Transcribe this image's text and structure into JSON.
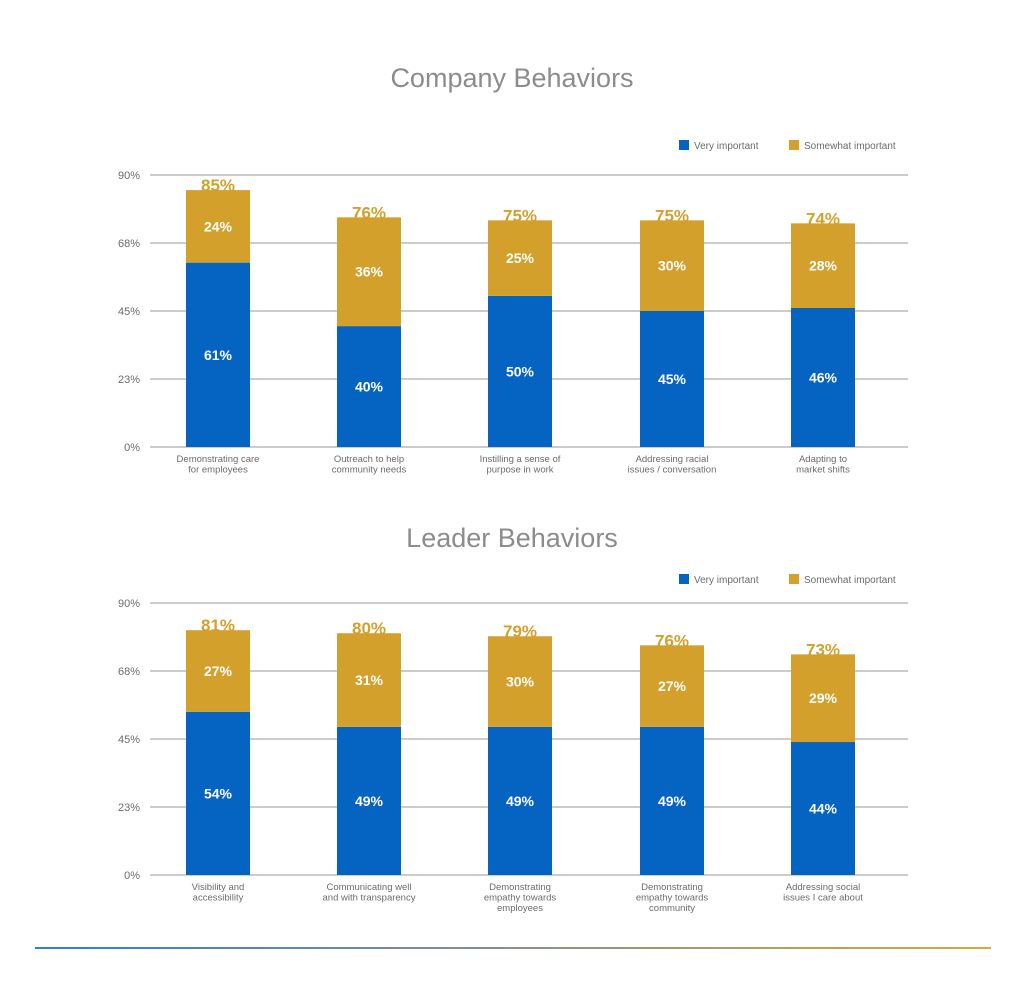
{
  "colors": {
    "very": "#0563c1",
    "somewhat": "#d4a02c",
    "grid": "#9a9a9a",
    "title": "#8c8c8c",
    "text": "#6b6b6b",
    "divider_start": "#2f7fd4",
    "divider_end": "#d9a93a"
  },
  "chart_data": [
    {
      "type": "bar",
      "stacked": true,
      "title": "Company Behaviors",
      "ylim": [
        0,
        90
      ],
      "yticks": [
        "0%",
        "23%",
        "45%",
        "68%",
        "90%"
      ],
      "ytick_values": [
        0,
        22.5,
        45,
        67.5,
        90
      ],
      "legend_position": "top-right",
      "categories": [
        [
          "Demonstrating care",
          "for employees"
        ],
        [
          "Outreach to help",
          "community needs"
        ],
        [
          "Instilling a sense of",
          "purpose in work"
        ],
        [
          "Addressing racial",
          "issues / conversation"
        ],
        [
          "Adapting to",
          "market shifts"
        ]
      ],
      "series": [
        {
          "name": "Very important",
          "values": [
            61,
            40,
            50,
            45,
            46
          ]
        },
        {
          "name": "Somewhat important",
          "values": [
            24,
            36,
            25,
            30,
            28
          ]
        }
      ],
      "totals": [
        85,
        76,
        75,
        75,
        74
      ]
    },
    {
      "type": "bar",
      "stacked": true,
      "title": "Leader Behaviors",
      "ylim": [
        0,
        90
      ],
      "yticks": [
        "0%",
        "23%",
        "45%",
        "68%",
        "90%"
      ],
      "ytick_values": [
        0,
        22.5,
        45,
        67.5,
        90
      ],
      "legend_position": "top-right",
      "categories": [
        [
          "Visibility and",
          "accessibility"
        ],
        [
          "Communicating well",
          "and with transparency"
        ],
        [
          "Demonstrating",
          "empathy towards",
          "employees"
        ],
        [
          "Demonstrating",
          "empathy towards",
          "community"
        ],
        [
          "Addressing social",
          "issues I care about"
        ]
      ],
      "series": [
        {
          "name": "Very important",
          "values": [
            54,
            49,
            49,
            49,
            44
          ]
        },
        {
          "name": "Somewhat important",
          "values": [
            27,
            31,
            30,
            27,
            29
          ]
        }
      ],
      "totals": [
        81,
        80,
        79,
        76,
        73
      ]
    }
  ]
}
